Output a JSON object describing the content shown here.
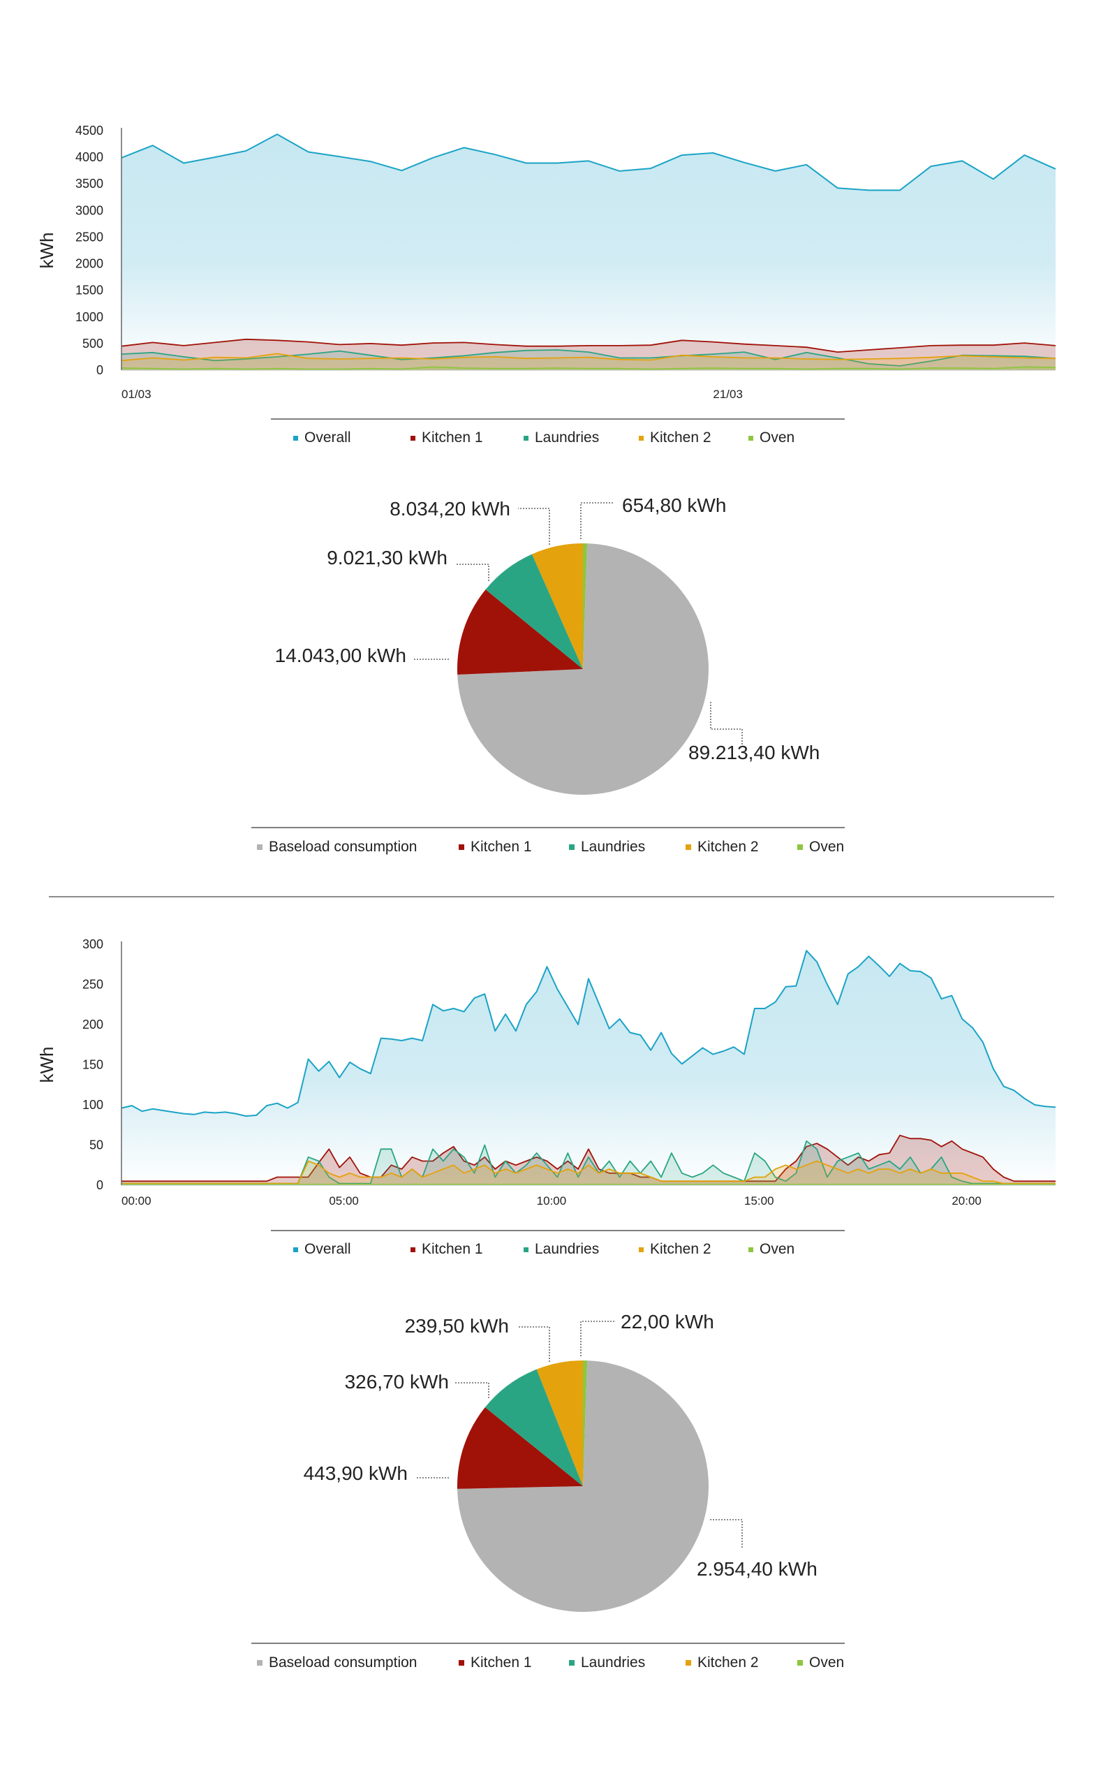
{
  "colors": {
    "overall": "#1ba3c6",
    "kitchen1": "#a01208",
    "laundries": "#2aa583",
    "kitchen2": "#e4a20c",
    "oven": "#8dc63f",
    "baseload": "#b3b3b3"
  },
  "chart_data": [
    {
      "type": "area",
      "ylabel": "kWh",
      "ylim": [
        0,
        4500
      ],
      "yticks": [
        "4500",
        "4000",
        "3500",
        "3000",
        "2500",
        "2000",
        "1500",
        "1000",
        "500",
        "0"
      ],
      "xticks": [
        {
          "label": "01/03",
          "index": 0
        },
        {
          "label": "21/03",
          "index": 19
        }
      ],
      "legend": [
        "Overall",
        "Kitchen 1",
        "Laundries",
        "Kitchen 2",
        "Oven"
      ],
      "series": [
        {
          "name": "Overall",
          "values": [
            3990,
            4220,
            3890,
            4000,
            4120,
            4430,
            4100,
            4010,
            3920,
            3750,
            3990,
            4180,
            4050,
            3890,
            3890,
            3930,
            3740,
            3790,
            4040,
            4080,
            3900,
            3740,
            3860,
            3420,
            3380,
            3380,
            3830,
            3930,
            3590,
            4040,
            3780
          ]
        },
        {
          "name": "Kitchen 1",
          "values": [
            450,
            520,
            460,
            520,
            580,
            560,
            530,
            480,
            500,
            470,
            510,
            520,
            480,
            450,
            450,
            460,
            460,
            470,
            560,
            530,
            490,
            460,
            430,
            340,
            380,
            420,
            460,
            470,
            470,
            510,
            460
          ]
        },
        {
          "name": "Laundries",
          "values": [
            300,
            330,
            250,
            180,
            210,
            250,
            300,
            360,
            280,
            200,
            230,
            270,
            330,
            370,
            380,
            340,
            230,
            230,
            270,
            300,
            340,
            200,
            330,
            230,
            120,
            80,
            170,
            280,
            270,
            260,
            220
          ]
        },
        {
          "name": "Kitchen 2",
          "values": [
            180,
            230,
            190,
            240,
            230,
            310,
            220,
            210,
            220,
            230,
            210,
            240,
            250,
            220,
            230,
            240,
            200,
            190,
            280,
            250,
            230,
            230,
            210,
            200,
            210,
            220,
            240,
            270,
            250,
            230,
            220
          ]
        },
        {
          "name": "Oven",
          "values": [
            40,
            30,
            20,
            30,
            20,
            30,
            20,
            20,
            30,
            20,
            60,
            40,
            30,
            30,
            40,
            30,
            30,
            20,
            30,
            40,
            30,
            30,
            20,
            30,
            30,
            20,
            40,
            40,
            30,
            60,
            50
          ]
        }
      ]
    },
    {
      "type": "pie",
      "legend": [
        "Baseload consumption",
        "Kitchen 1",
        "Laundries",
        "Kitchen 2",
        "Oven"
      ],
      "slices": [
        {
          "name": "Oven",
          "value": 654.8,
          "label": "654,80 kWh"
        },
        {
          "name": "Baseload consumption",
          "value": 89213.4,
          "label": "89.213,40 kWh"
        },
        {
          "name": "Kitchen 1",
          "value": 14043.0,
          "label": "14.043,00 kWh"
        },
        {
          "name": "Laundries",
          "value": 9021.3,
          "label": "9.021,30 kWh"
        },
        {
          "name": "Kitchen 2",
          "value": 8034.2,
          "label": "8.034,20 kWh"
        }
      ]
    },
    {
      "type": "area",
      "ylabel": "kWh",
      "ylim": [
        0,
        300
      ],
      "yticks": [
        "300",
        "250",
        "200",
        "150",
        "100",
        "50",
        "0"
      ],
      "xticks": [
        {
          "label": "00:00",
          "index": 0
        },
        {
          "label": "05:00",
          "index": 20
        },
        {
          "label": "10:00",
          "index": 40
        },
        {
          "label": "15:00",
          "index": 60
        },
        {
          "label": "20:00",
          "index": 80
        }
      ],
      "legend": [
        "Overall",
        "Kitchen 1",
        "Laundries",
        "Kitchen 2",
        "Oven"
      ],
      "series": [
        {
          "name": "Overall",
          "values": [
            96,
            99,
            92,
            95,
            93,
            91,
            89,
            88,
            91,
            90,
            91,
            89,
            86,
            87,
            99,
            102,
            96,
            103,
            157,
            142,
            154,
            134,
            153,
            145,
            139,
            183,
            182,
            180,
            183,
            180,
            225,
            217,
            220,
            216,
            233,
            238,
            192,
            213,
            192,
            225,
            241,
            272,
            244,
            222,
            200,
            257,
            226,
            195,
            207,
            190,
            187,
            168,
            190,
            164,
            151,
            161,
            171,
            163,
            167,
            172,
            163,
            220,
            220,
            228,
            247,
            248,
            292,
            278,
            250,
            225,
            263,
            272,
            285,
            273,
            260,
            276,
            267,
            266,
            258,
            232,
            236,
            207,
            196,
            178,
            145,
            123,
            118,
            108,
            100,
            98,
            97
          ]
        },
        {
          "name": "Kitchen 1",
          "values": [
            5,
            5,
            5,
            5,
            5,
            5,
            5,
            5,
            5,
            5,
            5,
            5,
            5,
            5,
            5,
            10,
            10,
            10,
            10,
            28,
            45,
            22,
            35,
            15,
            10,
            10,
            25,
            20,
            35,
            30,
            30,
            40,
            48,
            30,
            25,
            35,
            20,
            30,
            25,
            30,
            35,
            30,
            20,
            30,
            20,
            45,
            20,
            15,
            15,
            15,
            10,
            10,
            5,
            5,
            5,
            5,
            5,
            5,
            5,
            5,
            5,
            5,
            5,
            5,
            20,
            30,
            48,
            52,
            45,
            35,
            25,
            35,
            30,
            38,
            40,
            62,
            58,
            58,
            56,
            48,
            55,
            45,
            40,
            35,
            20,
            10,
            5,
            5,
            5,
            5,
            5
          ]
        },
        {
          "name": "Laundries",
          "values": [
            2,
            2,
            2,
            2,
            2,
            2,
            2,
            2,
            2,
            2,
            2,
            2,
            2,
            2,
            2,
            2,
            2,
            2,
            35,
            30,
            10,
            2,
            2,
            2,
            2,
            45,
            45,
            10,
            20,
            10,
            45,
            30,
            45,
            35,
            15,
            50,
            10,
            30,
            15,
            25,
            40,
            25,
            10,
            40,
            10,
            35,
            15,
            30,
            10,
            30,
            15,
            30,
            10,
            40,
            15,
            10,
            15,
            25,
            15,
            10,
            5,
            40,
            30,
            10,
            5,
            15,
            55,
            45,
            10,
            30,
            35,
            40,
            20,
            25,
            30,
            20,
            35,
            15,
            20,
            35,
            10,
            5,
            2,
            2,
            2,
            2,
            2,
            2,
            2,
            2,
            2
          ]
        },
        {
          "name": "Kitchen 2",
          "values": [
            2,
            2,
            2,
            2,
            2,
            2,
            2,
            2,
            2,
            2,
            2,
            2,
            2,
            2,
            2,
            2,
            2,
            2,
            30,
            25,
            15,
            10,
            15,
            10,
            10,
            10,
            15,
            10,
            20,
            10,
            15,
            20,
            25,
            15,
            20,
            25,
            15,
            20,
            15,
            20,
            25,
            20,
            15,
            20,
            15,
            25,
            15,
            20,
            15,
            15,
            15,
            10,
            5,
            5,
            5,
            5,
            5,
            5,
            5,
            5,
            5,
            10,
            10,
            20,
            25,
            20,
            25,
            30,
            25,
            20,
            15,
            20,
            15,
            20,
            20,
            15,
            20,
            15,
            20,
            15,
            15,
            15,
            10,
            5,
            5,
            2,
            2,
            2,
            2,
            2,
            2
          ]
        },
        {
          "name": "Oven",
          "values": [
            1,
            1,
            1,
            1,
            1,
            1,
            1,
            1,
            1,
            1,
            1,
            1,
            1,
            1,
            1,
            1,
            1,
            1,
            1,
            1,
            1,
            1,
            1,
            1,
            1,
            1,
            1,
            1,
            1,
            1,
            1,
            1,
            1,
            1,
            1,
            1,
            1,
            1,
            1,
            1,
            1,
            1,
            1,
            1,
            1,
            1,
            1,
            1,
            1,
            1,
            1,
            1,
            1,
            1,
            1,
            1,
            1,
            1,
            1,
            1,
            1,
            1,
            1,
            1,
            1,
            1,
            1,
            1,
            1,
            1,
            1,
            1,
            1,
            1,
            1,
            1,
            1,
            1,
            1,
            1,
            1,
            1,
            1,
            1,
            1,
            1,
            1,
            1,
            1,
            1,
            1
          ]
        }
      ]
    },
    {
      "type": "pie",
      "legend": [
        "Baseload consumption",
        "Kitchen 1",
        "Laundries",
        "Kitchen 2",
        "Oven"
      ],
      "slices": [
        {
          "name": "Oven",
          "value": 22.0,
          "label": "22,00 kWh"
        },
        {
          "name": "Baseload consumption",
          "value": 2954.4,
          "label": "2.954,40 kWh"
        },
        {
          "name": "Kitchen 1",
          "value": 443.9,
          "label": "443,90 kWh"
        },
        {
          "name": "Laundries",
          "value": 326.7,
          "label": "326,70 kWh"
        },
        {
          "name": "Kitchen 2",
          "value": 239.5,
          "label": "239,50 kWh"
        }
      ]
    }
  ]
}
